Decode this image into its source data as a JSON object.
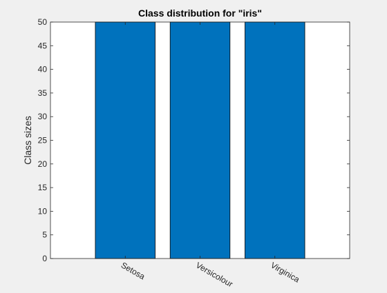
{
  "chart_data": {
    "type": "bar",
    "title": "Class distribution for \"iris\"",
    "xlabel": "",
    "ylabel": "Class sizes",
    "categories": [
      "Setosa",
      "Versicolour",
      "Virginica"
    ],
    "values": [
      50,
      50,
      50
    ],
    "ylim": [
      0,
      50
    ],
    "yticks": [
      0,
      5,
      10,
      15,
      20,
      25,
      30,
      35,
      40,
      45,
      50
    ],
    "grid": false,
    "bar_color": "#0072BD",
    "bar_edge_color": "#000000"
  }
}
